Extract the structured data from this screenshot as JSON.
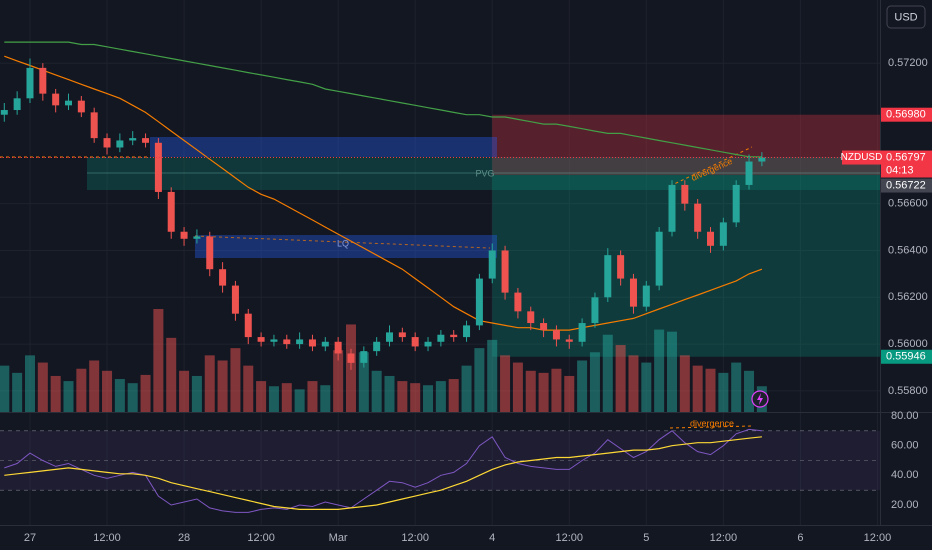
{
  "chart_data": {
    "type": "candlestick",
    "symbol": "NZDUSD",
    "countdown": "04:13",
    "currency": "USD",
    "up_color": "#26a69a",
    "down_color": "#ef5350",
    "xlim": [
      -4.67,
      132.4
    ],
    "xticks": [
      {
        "value": 0,
        "label": "27"
      },
      {
        "value": 12,
        "label": "12:00"
      },
      {
        "value": 24,
        "label": "28"
      },
      {
        "value": 36,
        "label": "12:00"
      },
      {
        "value": 48,
        "label": "Mar"
      },
      {
        "value": 60,
        "label": "12:00"
      },
      {
        "value": 72,
        "label": "4"
      },
      {
        "value": 84,
        "label": "12:00"
      },
      {
        "value": 96,
        "label": "5"
      },
      {
        "value": 108,
        "label": "12:00"
      },
      {
        "value": 120,
        "label": "6"
      },
      {
        "value": 132,
        "label": "12:00"
      }
    ],
    "ylim": [
      0.5571,
      0.5747
    ],
    "yticks": [
      {
        "value": 0.572,
        "label": "0.57200"
      },
      {
        "value": 0.566,
        "label": "0.56600"
      },
      {
        "value": 0.564,
        "label": "0.56400"
      },
      {
        "value": 0.562,
        "label": "0.56200"
      },
      {
        "value": 0.56,
        "label": "0.56000"
      },
      {
        "value": 0.558,
        "label": "0.55800"
      }
    ],
    "grid": true,
    "x": [
      -4,
      -2,
      0,
      2,
      4,
      6,
      8,
      10,
      12,
      14,
      16,
      18,
      20,
      22,
      24,
      26,
      28,
      30,
      32,
      34,
      36,
      38,
      40,
      42,
      44,
      46,
      48,
      50,
      52,
      54,
      56,
      58,
      60,
      62,
      64,
      66,
      68,
      70,
      72,
      74,
      76,
      78,
      80,
      82,
      84,
      86,
      88,
      90,
      92,
      94,
      96,
      98,
      100,
      102,
      104,
      106,
      108,
      110,
      112,
      114
    ],
    "candles": [
      [
        0.5698,
        0.5703,
        0.5695,
        0.57
      ],
      [
        0.57,
        0.5708,
        0.5698,
        0.5705
      ],
      [
        0.5705,
        0.5722,
        0.5703,
        0.5718
      ],
      [
        0.5718,
        0.572,
        0.5704,
        0.5707
      ],
      [
        0.5707,
        0.5709,
        0.5699,
        0.5702
      ],
      [
        0.5702,
        0.5707,
        0.57,
        0.5704
      ],
      [
        0.5704,
        0.5706,
        0.5697,
        0.5699
      ],
      [
        0.5699,
        0.5701,
        0.5686,
        0.5688
      ],
      [
        0.5688,
        0.569,
        0.5681,
        0.5684
      ],
      [
        0.5684,
        0.569,
        0.5682,
        0.5687
      ],
      [
        0.5687,
        0.5691,
        0.5685,
        0.5688
      ],
      [
        0.5688,
        0.569,
        0.5684,
        0.5686
      ],
      [
        0.5686,
        0.5688,
        0.5662,
        0.5665
      ],
      [
        0.5665,
        0.5667,
        0.5645,
        0.5648
      ],
      [
        0.5648,
        0.565,
        0.5642,
        0.5645
      ],
      [
        0.5645,
        0.5649,
        0.5643,
        0.5646
      ],
      [
        0.5646,
        0.5648,
        0.5629,
        0.5632
      ],
      [
        0.5632,
        0.5635,
        0.5622,
        0.5625
      ],
      [
        0.5625,
        0.5627,
        0.561,
        0.5613
      ],
      [
        0.5613,
        0.5615,
        0.56,
        0.5603
      ],
      [
        0.5603,
        0.5605,
        0.5599,
        0.5601
      ],
      [
        0.5601,
        0.5604,
        0.5599,
        0.5602
      ],
      [
        0.5602,
        0.5604,
        0.5598,
        0.56
      ],
      [
        0.56,
        0.5605,
        0.5598,
        0.5602
      ],
      [
        0.5602,
        0.5604,
        0.5597,
        0.5599
      ],
      [
        0.5599,
        0.5603,
        0.5597,
        0.5601
      ],
      [
        0.5601,
        0.5603,
        0.5593,
        0.5596
      ],
      [
        0.5596,
        0.5598,
        0.5589,
        0.5592
      ],
      [
        0.5592,
        0.5599,
        0.559,
        0.5597
      ],
      [
        0.5597,
        0.5603,
        0.5595,
        0.5601
      ],
      [
        0.5601,
        0.5608,
        0.5599,
        0.5605
      ],
      [
        0.5605,
        0.5607,
        0.5601,
        0.5603
      ],
      [
        0.5603,
        0.5605,
        0.5597,
        0.5599
      ],
      [
        0.5599,
        0.5603,
        0.5597,
        0.5601
      ],
      [
        0.5601,
        0.5606,
        0.5599,
        0.5604
      ],
      [
        0.5604,
        0.5606,
        0.5601,
        0.5603
      ],
      [
        0.5603,
        0.561,
        0.5601,
        0.5608
      ],
      [
        0.5608,
        0.563,
        0.5606,
        0.5628
      ],
      [
        0.5628,
        0.5643,
        0.5626,
        0.564
      ],
      [
        0.564,
        0.5642,
        0.5619,
        0.5622
      ],
      [
        0.5622,
        0.5624,
        0.5611,
        0.5614
      ],
      [
        0.5614,
        0.5616,
        0.5606,
        0.5609
      ],
      [
        0.5609,
        0.5611,
        0.5603,
        0.5606
      ],
      [
        0.5606,
        0.5608,
        0.5599,
        0.5602
      ],
      [
        0.5602,
        0.5604,
        0.5598,
        0.5601
      ],
      [
        0.5601,
        0.5611,
        0.5599,
        0.5609
      ],
      [
        0.5609,
        0.5622,
        0.5607,
        0.562
      ],
      [
        0.562,
        0.5641,
        0.5618,
        0.5638
      ],
      [
        0.5638,
        0.564,
        0.5625,
        0.5628
      ],
      [
        0.5628,
        0.563,
        0.5613,
        0.5616
      ],
      [
        0.5616,
        0.5627,
        0.5614,
        0.5625
      ],
      [
        0.5625,
        0.565,
        0.5623,
        0.5648
      ],
      [
        0.5648,
        0.567,
        0.5646,
        0.5668
      ],
      [
        0.5668,
        0.567,
        0.5657,
        0.566
      ],
      [
        0.566,
        0.5662,
        0.5645,
        0.5648
      ],
      [
        0.5648,
        0.565,
        0.5639,
        0.5642
      ],
      [
        0.5642,
        0.5654,
        0.564,
        0.5652
      ],
      [
        0.5652,
        0.567,
        0.565,
        0.5668
      ],
      [
        0.5668,
        0.5681,
        0.5666,
        0.5678
      ],
      [
        0.5678,
        0.5682,
        0.5676,
        0.56797
      ]
    ],
    "volume_lim": [
      0,
      400
    ],
    "volumes": [
      45,
      38,
      55,
      48,
      35,
      30,
      42,
      50,
      40,
      32,
      28,
      36,
      100,
      72,
      40,
      35,
      55,
      50,
      62,
      45,
      30,
      25,
      28,
      22,
      30,
      26,
      60,
      85,
      58,
      40,
      35,
      30,
      28,
      26,
      30,
      32,
      45,
      62,
      70,
      55,
      48,
      40,
      38,
      42,
      35,
      50,
      58,
      75,
      65,
      55,
      48,
      80,
      78,
      55,
      45,
      42,
      38,
      48,
      40,
      25
    ],
    "ma_slow": {
      "color": "#43a047",
      "values": [
        0.5729,
        0.5729,
        0.5729,
        0.5729,
        0.5729,
        0.5729,
        0.5728,
        0.5728,
        0.5727,
        0.5726,
        0.5725,
        0.5724,
        0.5723,
        0.5722,
        0.5721,
        0.572,
        0.5719,
        0.5718,
        0.5717,
        0.5716,
        0.5715,
        0.5714,
        0.5713,
        0.5712,
        0.5711,
        0.5709,
        0.5708,
        0.5707,
        0.5706,
        0.5705,
        0.5704,
        0.5703,
        0.5702,
        0.5701,
        0.57,
        0.5699,
        0.5698,
        0.5698,
        0.5697,
        0.5697,
        0.5696,
        0.5695,
        0.5694,
        0.5694,
        0.5693,
        0.5692,
        0.5691,
        0.569,
        0.569,
        0.5689,
        0.5688,
        0.5687,
        0.5686,
        0.5685,
        0.5684,
        0.5683,
        0.5682,
        0.5681,
        0.568,
        0.568
      ]
    },
    "ma_fast": {
      "color": "#f57c00",
      "values": [
        0.5723,
        0.5721,
        0.5719,
        0.5717,
        0.5715,
        0.5713,
        0.5711,
        0.5709,
        0.5707,
        0.5705,
        0.5702,
        0.5699,
        0.5695,
        0.5691,
        0.5687,
        0.5683,
        0.5679,
        0.5675,
        0.5671,
        0.5667,
        0.5664,
        0.5662,
        0.5659,
        0.5656,
        0.5653,
        0.565,
        0.5647,
        0.5644,
        0.5641,
        0.5638,
        0.5635,
        0.5632,
        0.5628,
        0.5624,
        0.562,
        0.5616,
        0.5613,
        0.561,
        0.5609,
        0.5608,
        0.5607,
        0.5607,
        0.5606,
        0.5606,
        0.5606,
        0.5607,
        0.5608,
        0.5609,
        0.561,
        0.5611,
        0.5613,
        0.5615,
        0.5617,
        0.5619,
        0.5621,
        0.5623,
        0.5625,
        0.5627,
        0.563,
        0.5632
      ]
    },
    "price_tags": [
      {
        "value": 0.5698,
        "label": "0.56980",
        "color": "#f23645"
      },
      {
        "value": 0.56797,
        "label": "0.56797",
        "color": "#f23645"
      },
      {
        "value": 0.56722,
        "label": "0.56722",
        "color": "#434651"
      },
      {
        "value": 0.55946,
        "label": "0.55946",
        "color": "#089981"
      }
    ],
    "rsi_lim": [
      6.5,
      82.7
    ],
    "rsi_ticks": [
      {
        "value": 80,
        "label": "80.00"
      },
      {
        "value": 60,
        "label": "60.00"
      },
      {
        "value": 40,
        "label": "40.00"
      },
      {
        "value": 20,
        "label": "20.00"
      }
    ],
    "rsi_levels": [
      70,
      50,
      30
    ],
    "rsi": {
      "color": "#7e57c2",
      "values": [
        45,
        48,
        55,
        50,
        46,
        48,
        44,
        40,
        38,
        40,
        42,
        40,
        26,
        20,
        22,
        24,
        18,
        16,
        15,
        15,
        17,
        18,
        17,
        20,
        19,
        22,
        20,
        18,
        24,
        30,
        36,
        35,
        32,
        35,
        40,
        42,
        48,
        60,
        66,
        52,
        48,
        46,
        45,
        44,
        44,
        50,
        55,
        64,
        58,
        52,
        56,
        64,
        70,
        62,
        56,
        54,
        60,
        68,
        71,
        70
      ]
    },
    "rsi_ma": {
      "color": "#fdd835",
      "values": [
        40,
        41,
        42,
        43,
        44,
        45,
        44,
        43,
        42,
        41,
        41,
        40,
        38,
        35,
        33,
        31,
        29,
        27,
        25,
        23,
        21,
        19,
        18,
        17,
        17,
        17,
        17,
        18,
        19,
        20,
        22,
        24,
        26,
        28,
        30,
        33,
        36,
        40,
        44,
        47,
        49,
        50,
        51,
        52,
        52,
        53,
        54,
        55,
        56,
        57,
        57,
        58,
        60,
        61,
        62,
        62,
        63,
        64,
        65,
        66
      ]
    },
    "annotations": {
      "pvg": "PVG",
      "lq": "LQ",
      "divergence_price": "divergence",
      "divergence_rsi": "divergence"
    }
  }
}
